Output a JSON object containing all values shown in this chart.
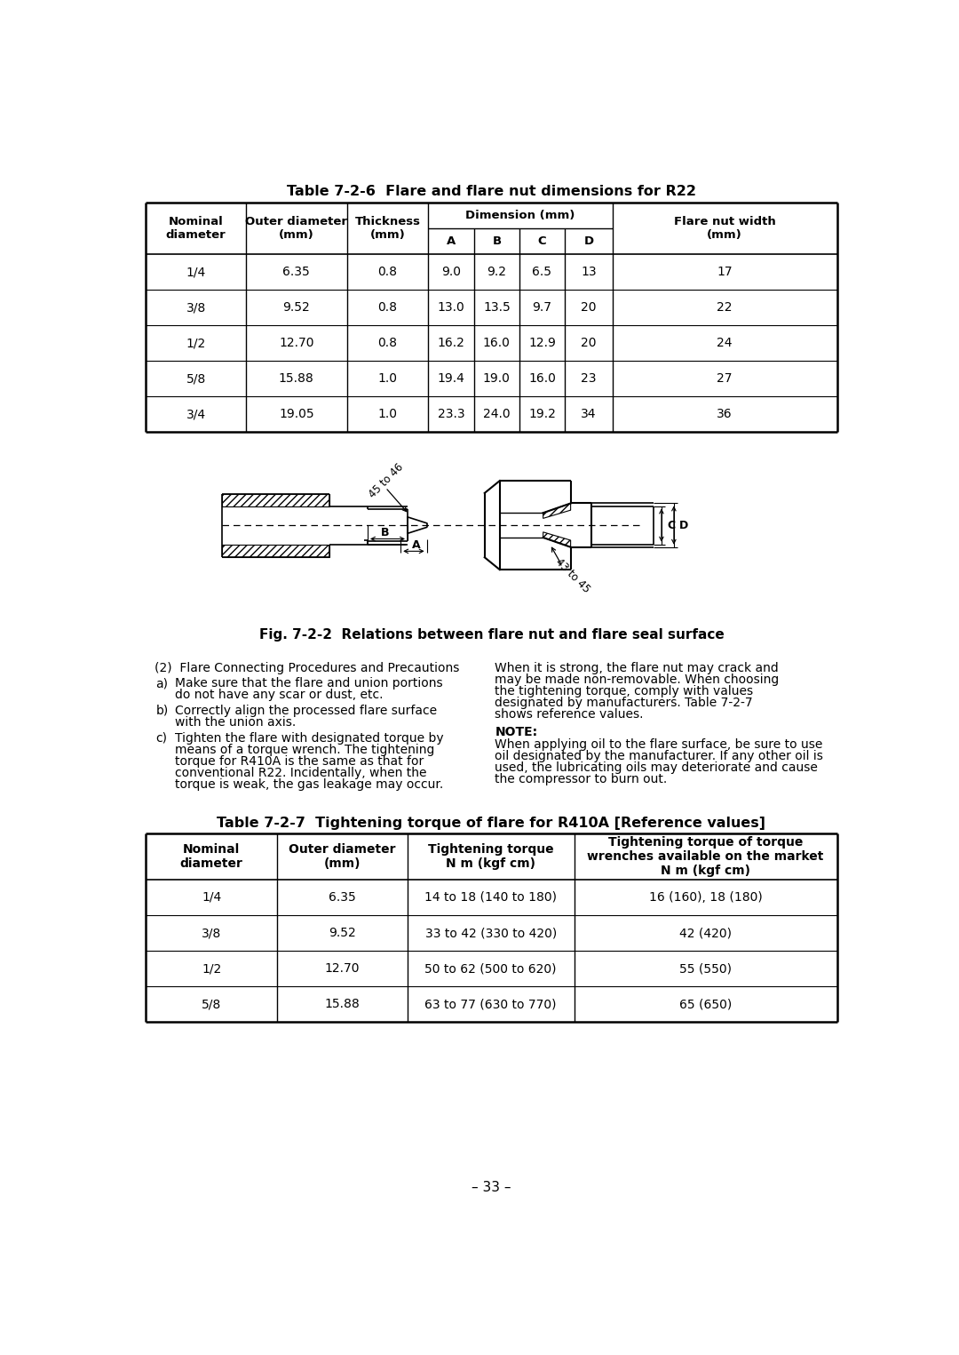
{
  "bg_color": "#ffffff",
  "page_number": "– 33 –",
  "table1_title": "Table 7-2-6  Flare and flare nut dimensions for R22",
  "table1_rows": [
    [
      "1/4",
      "6.35",
      "0.8",
      "9.0",
      "9.2",
      "6.5",
      "13",
      "17"
    ],
    [
      "3/8",
      "9.52",
      "0.8",
      "13.0",
      "13.5",
      "9.7",
      "20",
      "22"
    ],
    [
      "1/2",
      "12.70",
      "0.8",
      "16.2",
      "16.0",
      "12.9",
      "20",
      "24"
    ],
    [
      "5/8",
      "15.88",
      "1.0",
      "19.4",
      "19.0",
      "16.0",
      "23",
      "27"
    ],
    [
      "3/4",
      "19.05",
      "1.0",
      "23.3",
      "24.0",
      "19.2",
      "34",
      "36"
    ]
  ],
  "fig_caption": "Fig. 7-2-2  Relations between flare nut and flare seal surface",
  "section_title": "(2)  Flare Connecting Procedures and Precautions",
  "item_a_label": "a)",
  "item_a_line1": "Make sure that the flare and union portions",
  "item_a_line2": "do not have any scar or dust, etc.",
  "item_b_label": "b)",
  "item_b_line1": "Correctly align the processed flare surface",
  "item_b_line2": "with the union axis.",
  "item_c_label": "c)",
  "item_c_line1": "Tighten the flare with designated torque by",
  "item_c_line2": "means of a torque wrench. The tightening",
  "item_c_line3": "torque for R410A is the same as that for",
  "item_c_line4": "conventional R22. Incidentally, when the",
  "item_c_line5": "torque is weak, the gas leakage may occur.",
  "right_para_lines": [
    "When it is strong, the flare nut may crack and",
    "may be made non-removable. When choosing",
    "the tightening torque, comply with values",
    "designated by manufacturers. Table 7-2-7",
    "shows reference values."
  ],
  "note_title": "NOTE:",
  "note_lines": [
    "When applying oil to the flare surface, be sure to use",
    "oil designated by the manufacturer. If any other oil is",
    "used, the lubricating oils may deteriorate and cause",
    "the compressor to burn out."
  ],
  "table2_title": "Table 7-2-7  Tightening torque of flare for R410A [Reference values]",
  "table2_rows": [
    [
      "1/4",
      "6.35",
      "14 to 18 (140 to 180)",
      "16 (160), 18 (180)"
    ],
    [
      "3/8",
      "9.52",
      "33 to 42 (330 to 420)",
      "42 (420)"
    ],
    [
      "1/2",
      "12.70",
      "50 to 62 (500 to 620)",
      "55 (550)"
    ],
    [
      "5/8",
      "15.88",
      "63 to 77 (630 to 770)",
      "65 (650)"
    ]
  ]
}
